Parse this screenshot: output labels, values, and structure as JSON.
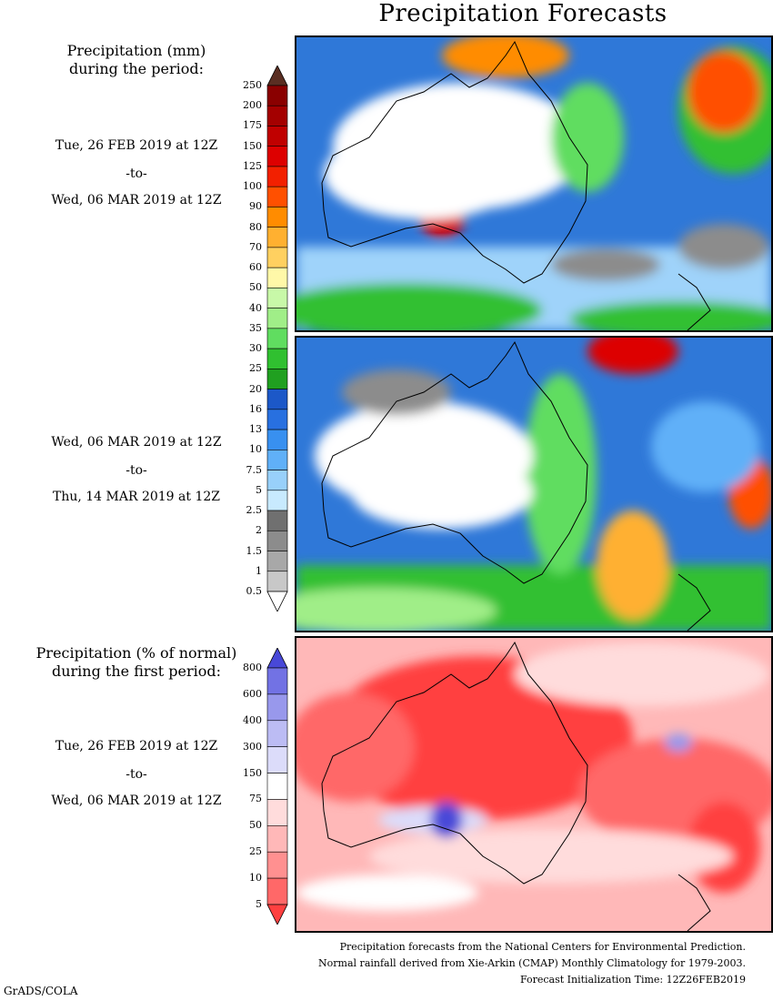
{
  "title": "Precipitation Forecasts",
  "section1": {
    "heading_line1": "Precipitation (mm)",
    "heading_line2": "during the period:"
  },
  "period1": {
    "start": "Tue, 26 FEB 2019 at 12Z",
    "sep": "-to-",
    "end": "Wed, 06 MAR 2019 at 12Z"
  },
  "period2": {
    "start": "Wed, 06 MAR 2019 at 12Z",
    "sep": "-to-",
    "end": "Thu, 14 MAR 2019 at 12Z"
  },
  "section2": {
    "heading_line1": "Precipitation (% of normal)",
    "heading_line2": "during the first period:"
  },
  "period3": {
    "start": "Tue, 26 FEB 2019 at 12Z",
    "sep": "-to-",
    "end": "Wed, 06 MAR 2019 at 12Z"
  },
  "colorbar_mm": {
    "labels": [
      "250",
      "200",
      "175",
      "150",
      "125",
      "100",
      "90",
      "80",
      "70",
      "60",
      "50",
      "40",
      "35",
      "30",
      "25",
      "20",
      "16",
      "13",
      "10",
      "7.5",
      "5",
      "2.5",
      "2",
      "1.5",
      "1",
      "0.5"
    ],
    "colors": [
      "#5a2e22",
      "#8a0000",
      "#a40000",
      "#c00000",
      "#dd0000",
      "#f22000",
      "#ff5000",
      "#ff8c00",
      "#ffb030",
      "#ffd060",
      "#fff8a8",
      "#c8f8a8",
      "#a0ee88",
      "#60dd60",
      "#30c030",
      "#20a020",
      "#1c58c8",
      "#2870e0",
      "#3890f0",
      "#60b0f8",
      "#98d0fa",
      "#c8eafe",
      "#707070",
      "#8c8c8c",
      "#a8a8a8",
      "#c8c8c8",
      "#ffffff"
    ]
  },
  "colorbar_pct": {
    "labels": [
      "800",
      "600",
      "400",
      "300",
      "150",
      "75",
      "50",
      "25",
      "10",
      "5"
    ],
    "colors": [
      "#4848d8",
      "#7272e4",
      "#9898ec",
      "#bcbcf4",
      "#dcdcfa",
      "#ffffff",
      "#ffdcdc",
      "#ffb8b8",
      "#ff9090",
      "#ff6868",
      "#ff4040"
    ]
  },
  "footer": {
    "line1": "Precipitation forecasts from the National Centers for Environmental Prediction.",
    "line2": "Normal rainfall derived from Xie-Arkin (CMAP) Monthly Climatology for 1979-2003.",
    "line3": "Forecast Initialization Time: 12Z26FEB2019"
  },
  "credit": "GrADS/COLA"
}
